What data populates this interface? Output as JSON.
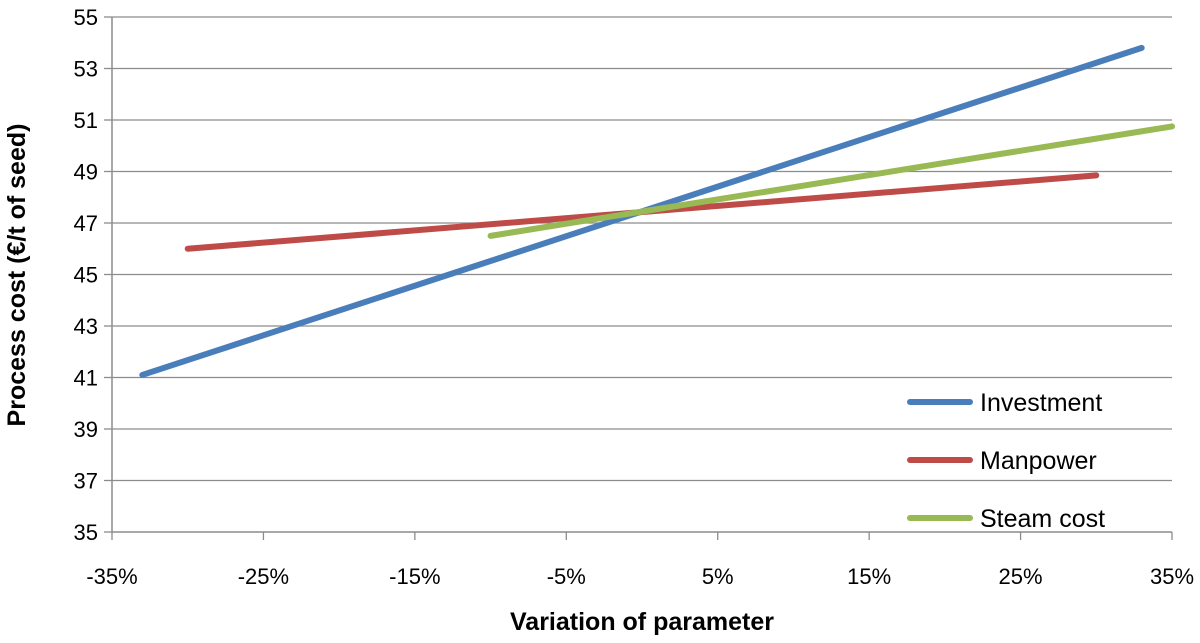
{
  "chart_data": {
    "type": "line",
    "title": "",
    "xlabel": "Variation of parameter",
    "ylabel": "Process cost (€/t of seed)",
    "xlim": [
      -35,
      35
    ],
    "ylim": [
      35,
      55
    ],
    "x_ticks": [
      -35,
      -25,
      -15,
      -5,
      5,
      15,
      25,
      35
    ],
    "x_tick_labels": [
      "-35%",
      "-25%",
      "-15%",
      "-5%",
      "5%",
      "15%",
      "25%",
      "35%"
    ],
    "y_ticks": [
      35,
      37,
      39,
      41,
      43,
      45,
      47,
      49,
      51,
      53,
      55
    ],
    "y_tick_labels": [
      "35",
      "37",
      "39",
      "41",
      "43",
      "45",
      "47",
      "49",
      "51",
      "53",
      "55"
    ],
    "grid": "horizontal",
    "legend_position": "bottom-right",
    "series": [
      {
        "name": "Investment",
        "color": "#4a7ebb",
        "x": [
          -33,
          33
        ],
        "y": [
          41.1,
          53.8
        ]
      },
      {
        "name": "Manpower",
        "color": "#be4b48",
        "x": [
          -30,
          30
        ],
        "y": [
          46.0,
          48.85
        ]
      },
      {
        "name": "Steam cost",
        "color": "#98b954",
        "x": [
          -10,
          35
        ],
        "y": [
          46.5,
          50.75
        ]
      }
    ]
  }
}
